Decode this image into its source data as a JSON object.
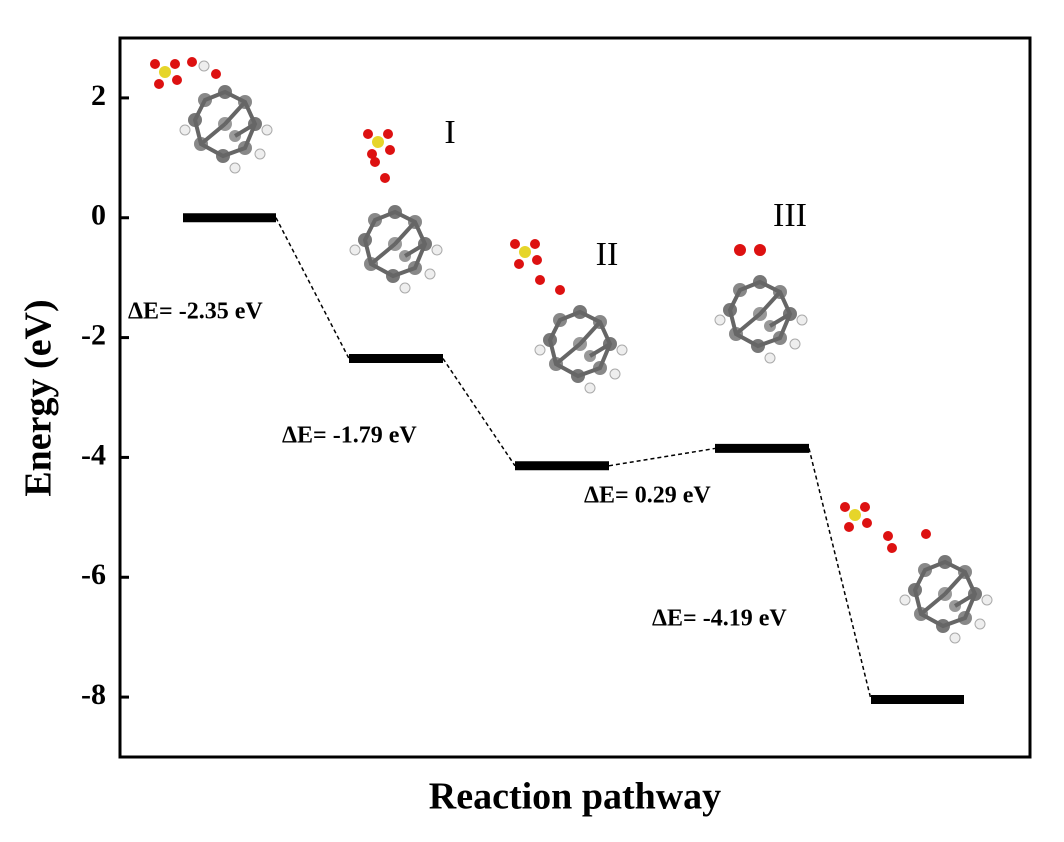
{
  "chart_data": {
    "type": "energy-levels",
    "values": [
      0,
      -2.35,
      -4.14,
      -3.85,
      -8.04
    ],
    "state_labels": [
      null,
      "I",
      "II",
      "III",
      null
    ],
    "annotations": [
      "ΔE= -2.35 eV",
      "ΔE= -1.79 eV",
      "ΔE= 0.29 eV",
      "ΔE= -4.19 eV"
    ],
    "ylabel": "Energy (eV)",
    "xlabel": "Reaction pathway",
    "ylim": [
      -9,
      3
    ],
    "yticks": [
      2,
      0,
      -2,
      -4,
      -6,
      -8
    ],
    "color": "#000000"
  }
}
